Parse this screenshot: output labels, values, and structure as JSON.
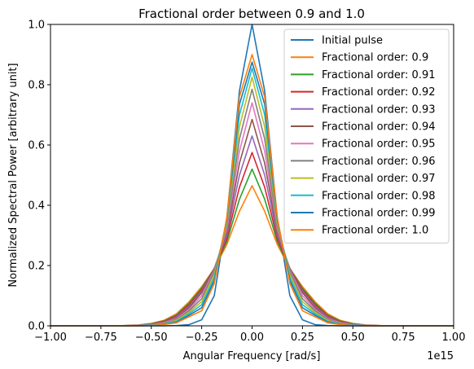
{
  "chart_data": {
    "type": "line",
    "title": "Fractional order between 0.9 and 1.0",
    "xlabel": "Angular Frequency [rad/s]",
    "ylabel": "Normalized Spectral Power [arbitrary unit]",
    "x_offset_label": "1e15",
    "xlim": [
      -1.0,
      1.0
    ],
    "ylim": [
      0.0,
      1.0
    ],
    "x_ticks": [
      -1.0,
      -0.75,
      -0.5,
      -0.25,
      0.0,
      0.25,
      0.5,
      0.75,
      1.0
    ],
    "x_tick_labels": [
      "−1.00",
      "−0.75",
      "−0.50",
      "−0.25",
      "0.00",
      "0.25",
      "0.50",
      "0.75",
      "1.00"
    ],
    "y_ticks": [
      0.0,
      0.2,
      0.4,
      0.6,
      0.8,
      1.0
    ],
    "y_tick_labels": [
      "0.0",
      "0.2",
      "0.4",
      "0.6",
      "0.8",
      "1.0"
    ],
    "legend_position": "top-right",
    "x": [
      -1.0,
      -0.9375,
      -0.875,
      -0.8125,
      -0.75,
      -0.6875,
      -0.625,
      -0.5625,
      -0.5,
      -0.4375,
      -0.375,
      -0.3125,
      -0.25,
      -0.1875,
      -0.125,
      -0.0625,
      0.0,
      0.0625,
      0.125,
      0.1875,
      0.25,
      0.3125,
      0.375,
      0.4375,
      0.5,
      0.5625,
      0.625,
      0.6875,
      0.75,
      0.8125,
      0.875,
      0.9375,
      1.0
    ],
    "series": [
      {
        "name": "Initial pulse",
        "color": "#1f77b4",
        "values": [
          0,
          0,
          0,
          0,
          0,
          0,
          0,
          0,
          0,
          0,
          0.001,
          0.004,
          0.02,
          0.1,
          0.36,
          0.78,
          1.0,
          0.78,
          0.36,
          0.1,
          0.02,
          0.004,
          0.001,
          0,
          0,
          0,
          0,
          0,
          0,
          0,
          0,
          0,
          0
        ]
      },
      {
        "name": "Fractional order: 0.9",
        "color": "#ff7f0e",
        "values": [
          0,
          0,
          0,
          0,
          0,
          0,
          0.001,
          0.003,
          0.008,
          0.018,
          0.04,
          0.08,
          0.13,
          0.19,
          0.27,
          0.38,
          0.465,
          0.38,
          0.27,
          0.19,
          0.13,
          0.08,
          0.04,
          0.018,
          0.008,
          0.003,
          0.001,
          0,
          0,
          0,
          0,
          0,
          0
        ]
      },
      {
        "name": "Fractional order: 0.91",
        "color": "#2ca02c",
        "values": [
          0,
          0,
          0,
          0,
          0,
          0,
          0.001,
          0.002,
          0.007,
          0.016,
          0.036,
          0.075,
          0.125,
          0.19,
          0.28,
          0.42,
          0.52,
          0.42,
          0.28,
          0.19,
          0.125,
          0.075,
          0.036,
          0.016,
          0.007,
          0.002,
          0.001,
          0,
          0,
          0,
          0,
          0,
          0
        ]
      },
      {
        "name": "Fractional order: 0.92",
        "color": "#d62728",
        "values": [
          0,
          0,
          0,
          0,
          0,
          0,
          0.001,
          0.002,
          0.006,
          0.014,
          0.033,
          0.07,
          0.12,
          0.19,
          0.29,
          0.46,
          0.575,
          0.46,
          0.29,
          0.19,
          0.12,
          0.07,
          0.033,
          0.014,
          0.006,
          0.002,
          0.001,
          0,
          0,
          0,
          0,
          0,
          0
        ]
      },
      {
        "name": "Fractional order: 0.93",
        "color": "#9467bd",
        "values": [
          0,
          0,
          0,
          0,
          0,
          0,
          0,
          0.002,
          0.005,
          0.012,
          0.03,
          0.065,
          0.115,
          0.19,
          0.3,
          0.5,
          0.63,
          0.5,
          0.3,
          0.19,
          0.115,
          0.065,
          0.03,
          0.012,
          0.005,
          0.002,
          0,
          0,
          0,
          0,
          0,
          0,
          0
        ]
      },
      {
        "name": "Fractional order: 0.94",
        "color": "#8c564b",
        "values": [
          0,
          0,
          0,
          0,
          0,
          0,
          0,
          0.001,
          0.004,
          0.011,
          0.027,
          0.06,
          0.11,
          0.19,
          0.31,
          0.54,
          0.685,
          0.54,
          0.31,
          0.19,
          0.11,
          0.06,
          0.027,
          0.011,
          0.004,
          0.001,
          0,
          0,
          0,
          0,
          0,
          0,
          0
        ]
      },
      {
        "name": "Fractional order: 0.95",
        "color": "#e377c2",
        "values": [
          0,
          0,
          0,
          0,
          0,
          0,
          0,
          0.001,
          0.004,
          0.01,
          0.024,
          0.055,
          0.1,
          0.185,
          0.32,
          0.58,
          0.74,
          0.58,
          0.32,
          0.185,
          0.1,
          0.055,
          0.024,
          0.01,
          0.004,
          0.001,
          0,
          0,
          0,
          0,
          0,
          0,
          0
        ]
      },
      {
        "name": "Fractional order: 0.96",
        "color": "#7f7f7f",
        "values": [
          0,
          0,
          0,
          0,
          0,
          0,
          0,
          0.001,
          0.003,
          0.008,
          0.021,
          0.05,
          0.09,
          0.18,
          0.33,
          0.62,
          0.785,
          0.62,
          0.33,
          0.18,
          0.09,
          0.05,
          0.021,
          0.008,
          0.003,
          0.001,
          0,
          0,
          0,
          0,
          0,
          0,
          0
        ]
      },
      {
        "name": "Fractional order: 0.97",
        "color": "#bcbd22",
        "values": [
          0,
          0,
          0,
          0,
          0,
          0,
          0,
          0.001,
          0.002,
          0.007,
          0.018,
          0.045,
          0.08,
          0.17,
          0.34,
          0.66,
          0.825,
          0.66,
          0.34,
          0.17,
          0.08,
          0.045,
          0.018,
          0.007,
          0.002,
          0.001,
          0,
          0,
          0,
          0,
          0,
          0,
          0
        ]
      },
      {
        "name": "Fractional order: 0.98",
        "color": "#17becf",
        "values": [
          0,
          0,
          0,
          0,
          0,
          0,
          0,
          0.001,
          0.002,
          0.006,
          0.015,
          0.04,
          0.07,
          0.16,
          0.35,
          0.7,
          0.855,
          0.7,
          0.35,
          0.16,
          0.07,
          0.04,
          0.015,
          0.006,
          0.002,
          0.001,
          0,
          0,
          0,
          0,
          0,
          0,
          0
        ]
      },
      {
        "name": "Fractional order: 0.99",
        "color": "#1f77b4",
        "values": [
          0,
          0,
          0,
          0,
          0,
          0,
          0,
          0,
          0.001,
          0.005,
          0.012,
          0.035,
          0.06,
          0.15,
          0.355,
          0.735,
          0.875,
          0.735,
          0.355,
          0.15,
          0.06,
          0.035,
          0.012,
          0.005,
          0.001,
          0,
          0,
          0,
          0,
          0,
          0,
          0,
          0
        ]
      },
      {
        "name": "Fractional order: 1.0",
        "color": "#ff7f0e",
        "values": [
          0,
          0,
          0,
          0,
          0,
          0,
          0,
          0,
          0.001,
          0.004,
          0.01,
          0.03,
          0.05,
          0.14,
          0.36,
          0.76,
          0.9,
          0.76,
          0.36,
          0.14,
          0.05,
          0.03,
          0.01,
          0.004,
          0.001,
          0,
          0,
          0,
          0,
          0,
          0,
          0,
          0
        ]
      }
    ]
  }
}
